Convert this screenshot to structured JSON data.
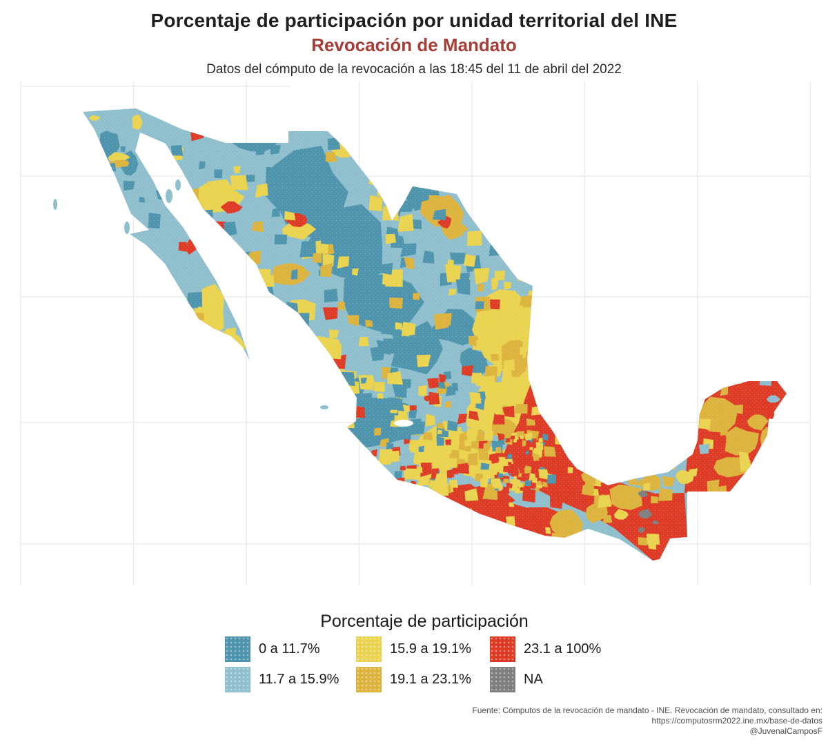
{
  "figure": {
    "title": "Porcentaje de participación por unidad territorial del INE",
    "subtitle": "Revocación de Mandato",
    "note": "Datos del cómputo de la revocación a las 18:45 del 11 de abril del 2022"
  },
  "legend": {
    "title": "Porcentaje de participación",
    "items": [
      {
        "key": "B",
        "label": "0 a 11.7%",
        "color": "#4e94ad"
      },
      {
        "key": "L",
        "label": "11.7 a 15.9%",
        "color": "#8fbfcd"
      },
      {
        "key": "Y",
        "label": "15.9 a 19.1%",
        "color": "#e9d34f"
      },
      {
        "key": "G",
        "label": "19.1 a 23.1%",
        "color": "#dcb33d"
      },
      {
        "key": "R",
        "label": "23.1 a 100%",
        "color": "#dd3b26"
      },
      {
        "key": "N",
        "label": "NA",
        "color": "#7f7f7f"
      }
    ]
  },
  "caption": {
    "line1": "Fuente: Cómputos de la revocación de mandato - INE. Revocación de mandato, consultado en:",
    "line2": "https://computosrm2022.ine.mx/base-de-datos",
    "line3": "@JuvenalCamposF"
  },
  "colors": {
    "title_text": "#1f1f1f",
    "subtitle_text": "#a63d37",
    "note_text": "#2b2b2b",
    "legend_text": "#1a1a1a",
    "caption_text": "#4d4d4d",
    "gridline": "#ececec",
    "background": "#ffffff",
    "lake": "#ffffff"
  },
  "chart_data": {
    "type": "choropleth-map",
    "region": "México — unidades territoriales del INE",
    "variable": "Porcentaje de participación (Revocación de Mandato 2022)",
    "bins": [
      {
        "range": "0 a 11.7%",
        "color": "#4e94ad"
      },
      {
        "range": "11.7 a 15.9%",
        "color": "#8fbfcd"
      },
      {
        "range": "15.9 a 19.1%",
        "color": "#e9d34f"
      },
      {
        "range": "19.1 a 23.1%",
        "color": "#dcb33d"
      },
      {
        "range": "23.1 a 100%",
        "color": "#dd3b26"
      },
      {
        "range": "NA",
        "color": "#7f7f7f"
      }
    ],
    "pattern": "Norte y noroeste con participación baja (azules); franja central, Bajío y costa de Tamaulipas con participación media (amarillo/dorado); sur y sureste (sur de Veracruz, Oaxaca, Guerrero oriental, Chiapas, Tabasco, Campeche, Yucatán y Quintana Roo) con participación alta (rojo); pequeñas zonas NA en gris dentro de Chiapas."
  }
}
